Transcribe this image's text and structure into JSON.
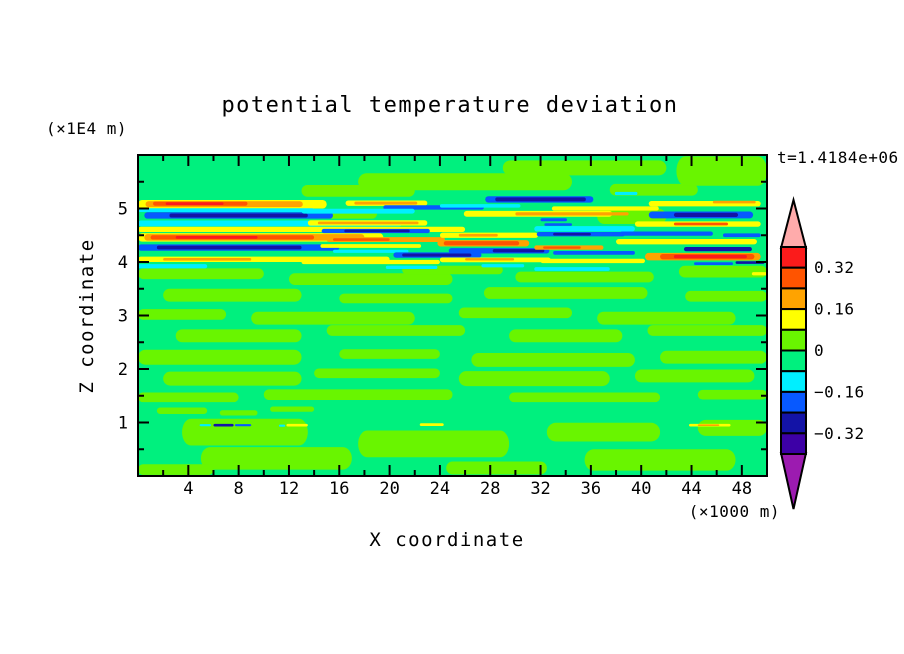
{
  "title": "potential temperature deviation",
  "time_label": "t=1.4184e+06",
  "axes": {
    "x": {
      "label": "X coordinate",
      "unit_label": "(×1000 m)",
      "range": [
        0,
        50
      ],
      "major_ticks": [
        {
          "value": 4,
          "label": "4"
        },
        {
          "value": 8,
          "label": "8"
        },
        {
          "value": 12,
          "label": "12"
        },
        {
          "value": 16,
          "label": "16"
        },
        {
          "value": 20,
          "label": "20"
        },
        {
          "value": 24,
          "label": "24"
        },
        {
          "value": 28,
          "label": "28"
        },
        {
          "value": 32,
          "label": "32"
        },
        {
          "value": 36,
          "label": "36"
        },
        {
          "value": 40,
          "label": "40"
        },
        {
          "value": 44,
          "label": "44"
        },
        {
          "value": 48,
          "label": "48"
        }
      ],
      "minor_ticks": [
        2,
        6,
        10,
        14,
        18,
        22,
        26,
        30,
        34,
        38,
        42,
        46
      ]
    },
    "z": {
      "label": "Z coordinate",
      "unit_label": "(×1E4 m)",
      "range": [
        0,
        6
      ],
      "major_ticks": [
        {
          "value": 1,
          "label": "1"
        },
        {
          "value": 2,
          "label": "2"
        },
        {
          "value": 3,
          "label": "3"
        },
        {
          "value": 4,
          "label": "4"
        },
        {
          "value": 5,
          "label": "5"
        }
      ],
      "minor_ticks": [
        0.5,
        1.5,
        2.5,
        3.5,
        4.5,
        5.5
      ]
    }
  },
  "colorbar": {
    "segments_top_to_bottom": [
      "#FB1B1B",
      "#FF5400",
      "#FFA300",
      "#FFFF00",
      "#69F500",
      "#00F07E",
      "#00EFFF",
      "#0759FF",
      "#1313A6",
      "#3D00A6"
    ],
    "arrow_top_color": "#FFABAB",
    "arrow_bottom_color": "#9C1BB0",
    "labels": [
      {
        "text": "0.32",
        "boundary_index": 1
      },
      {
        "text": "0.16",
        "boundary_index": 3
      },
      {
        "text": "0",
        "boundary_index": 5
      },
      {
        "text": "−0.16",
        "boundary_index": 7
      },
      {
        "text": "−0.32",
        "boundary_index": 9
      }
    ]
  },
  "chart_data": {
    "type": "filled_contour",
    "title": "potential temperature deviation",
    "xlabel": "X coordinate (×1000 m)",
    "ylabel": "Z coordinate (×1E4 m)",
    "x_range": [
      0,
      50
    ],
    "z_range": [
      0,
      6
    ],
    "contour_levels": [
      -0.4,
      -0.32,
      -0.24,
      -0.16,
      -0.08,
      0,
      0.08,
      0.16,
      0.24,
      0.32,
      0.4
    ],
    "palette": {
      "bands": [
        {
          "min": 0.32,
          "max": 0.4,
          "color": "#FB1B1B"
        },
        {
          "min": 0.24,
          "max": 0.32,
          "color": "#FF5400"
        },
        {
          "min": 0.16,
          "max": 0.24,
          "color": "#FFA300"
        },
        {
          "min": 0.08,
          "max": 0.16,
          "color": "#FFFF00"
        },
        {
          "min": 0,
          "max": 0.08,
          "color": "#69F500"
        },
        {
          "min": -0.08,
          "max": 0,
          "color": "#00F07E"
        },
        {
          "min": -0.16,
          "max": -0.08,
          "color": "#00EFFF"
        },
        {
          "min": -0.24,
          "max": -0.16,
          "color": "#0759FF"
        },
        {
          "min": -0.32,
          "max": -0.24,
          "color": "#1313A6"
        },
        {
          "min": -0.4,
          "max": -0.32,
          "color": "#3D00A6"
        }
      ],
      "over_color": "#FFABAB",
      "under_color": "#9C1BB0"
    },
    "background_value": -0.04,
    "patch_value": 0.04,
    "patches": [
      {
        "x": 13,
        "z": 5.33,
        "w": 9,
        "h": 0.22
      },
      {
        "x": 17.5,
        "z": 5.5,
        "w": 17,
        "h": 0.32
      },
      {
        "x": 29,
        "z": 5.76,
        "w": 13,
        "h": 0.28
      },
      {
        "x": 37.5,
        "z": 5.35,
        "w": 7,
        "h": 0.22
      },
      {
        "x": 42.8,
        "z": 5.7,
        "w": 7.2,
        "h": 0.55
      },
      {
        "x": 14,
        "z": 4.9,
        "w": 5,
        "h": 0.18
      },
      {
        "x": 36.5,
        "z": 4.85,
        "w": 5.5,
        "h": 0.28
      },
      {
        "x": 0,
        "z": 3.78,
        "w": 10,
        "h": 0.2
      },
      {
        "x": 12,
        "z": 3.68,
        "w": 13,
        "h": 0.22
      },
      {
        "x": 21,
        "z": 3.85,
        "w": 8,
        "h": 0.16
      },
      {
        "x": 30,
        "z": 3.72,
        "w": 11,
        "h": 0.2
      },
      {
        "x": 43,
        "z": 3.82,
        "w": 7,
        "h": 0.22
      },
      {
        "x": 2,
        "z": 3.38,
        "w": 11,
        "h": 0.24
      },
      {
        "x": 16,
        "z": 3.32,
        "w": 9,
        "h": 0.18
      },
      {
        "x": 27.5,
        "z": 3.42,
        "w": 13,
        "h": 0.22
      },
      {
        "x": 43.5,
        "z": 3.36,
        "w": 6.5,
        "h": 0.2
      },
      {
        "x": 0,
        "z": 3.02,
        "w": 7,
        "h": 0.2
      },
      {
        "x": 9,
        "z": 2.95,
        "w": 13,
        "h": 0.24
      },
      {
        "x": 25.5,
        "z": 3.05,
        "w": 9,
        "h": 0.2
      },
      {
        "x": 36.5,
        "z": 2.95,
        "w": 11,
        "h": 0.24
      },
      {
        "x": 3,
        "z": 2.62,
        "w": 10,
        "h": 0.24
      },
      {
        "x": 15,
        "z": 2.72,
        "w": 11,
        "h": 0.2
      },
      {
        "x": 29.5,
        "z": 2.62,
        "w": 9,
        "h": 0.24
      },
      {
        "x": 40.5,
        "z": 2.72,
        "w": 9.5,
        "h": 0.2
      },
      {
        "x": 0,
        "z": 2.22,
        "w": 13,
        "h": 0.28
      },
      {
        "x": 16,
        "z": 2.28,
        "w": 8,
        "h": 0.18
      },
      {
        "x": 26.5,
        "z": 2.17,
        "w": 13,
        "h": 0.26
      },
      {
        "x": 41.5,
        "z": 2.22,
        "w": 8.5,
        "h": 0.24
      },
      {
        "x": 2,
        "z": 1.82,
        "w": 11,
        "h": 0.26
      },
      {
        "x": 14,
        "z": 1.92,
        "w": 10,
        "h": 0.18
      },
      {
        "x": 25.5,
        "z": 1.82,
        "w": 12,
        "h": 0.28
      },
      {
        "x": 39.5,
        "z": 1.87,
        "w": 9.5,
        "h": 0.24
      },
      {
        "x": 0,
        "z": 1.47,
        "w": 8,
        "h": 0.18
      },
      {
        "x": 10,
        "z": 1.52,
        "w": 15,
        "h": 0.2
      },
      {
        "x": 29.5,
        "z": 1.47,
        "w": 12,
        "h": 0.18
      },
      {
        "x": 44.5,
        "z": 1.52,
        "w": 5.5,
        "h": 0.18
      },
      {
        "x": 1.5,
        "z": 1.22,
        "w": 4,
        "h": 0.12
      },
      {
        "x": 6.5,
        "z": 1.18,
        "w": 3,
        "h": 0.1
      },
      {
        "x": 10.5,
        "z": 1.25,
        "w": 3.5,
        "h": 0.1
      },
      {
        "x": 3.5,
        "z": 0.82,
        "w": 10,
        "h": 0.5
      },
      {
        "x": 5,
        "z": 0.33,
        "w": 12,
        "h": 0.42
      },
      {
        "x": 17.5,
        "z": 0.6,
        "w": 12,
        "h": 0.5
      },
      {
        "x": 32.5,
        "z": 0.82,
        "w": 9,
        "h": 0.35
      },
      {
        "x": 35.5,
        "z": 0.3,
        "w": 12,
        "h": 0.4
      },
      {
        "x": 44.5,
        "z": 0.9,
        "w": 5.5,
        "h": 0.3
      },
      {
        "x": 24.5,
        "z": 0.15,
        "w": 8,
        "h": 0.24
      },
      {
        "x": 0,
        "z": 0.12,
        "w": 6,
        "h": 0.2
      }
    ],
    "streaks": [
      {
        "x": 0,
        "z": 5.08,
        "w": 15,
        "h": 0.16,
        "v": 0.12
      },
      {
        "x": 0.6,
        "z": 5.08,
        "w": 12.5,
        "h": 0.11,
        "v": 0.2
      },
      {
        "x": 1.2,
        "z": 5.09,
        "w": 7.5,
        "h": 0.075,
        "v": 0.28
      },
      {
        "x": 2.2,
        "z": 5.09,
        "w": 4.6,
        "h": 0.05,
        "v": 0.36
      },
      {
        "x": 0,
        "z": 4.97,
        "w": 14,
        "h": 0.07,
        "v": -0.12
      },
      {
        "x": 0.5,
        "z": 4.87,
        "w": 15,
        "h": 0.12,
        "v": -0.2
      },
      {
        "x": 2.5,
        "z": 4.87,
        "w": 11,
        "h": 0.075,
        "v": -0.28
      },
      {
        "x": 0,
        "z": 4.72,
        "w": 21,
        "h": 0.11,
        "v": -0.12
      },
      {
        "x": 0,
        "z": 4.61,
        "w": 26,
        "h": 0.1,
        "v": 0.12
      },
      {
        "x": 0,
        "z": 4.46,
        "w": 19.5,
        "h": 0.16,
        "v": 0.12
      },
      {
        "x": 0.5,
        "z": 4.46,
        "w": 17.5,
        "h": 0.12,
        "v": 0.2
      },
      {
        "x": 1,
        "z": 4.46,
        "w": 13,
        "h": 0.08,
        "v": 0.28
      },
      {
        "x": 3,
        "z": 4.46,
        "w": 6.5,
        "h": 0.05,
        "v": 0.36
      },
      {
        "x": 0,
        "z": 4.27,
        "w": 16,
        "h": 0.12,
        "v": -0.2
      },
      {
        "x": 1.5,
        "z": 4.27,
        "w": 11.5,
        "h": 0.07,
        "v": -0.28
      },
      {
        "x": 0,
        "z": 4.05,
        "w": 20,
        "h": 0.1,
        "v": 0.12
      },
      {
        "x": 2,
        "z": 4.05,
        "w": 7,
        "h": 0.05,
        "v": 0.2
      },
      {
        "x": 0,
        "z": 3.92,
        "w": 5.5,
        "h": 0.08,
        "v": -0.12
      },
      {
        "x": 20,
        "z": 3.9,
        "w": 3.8,
        "h": 0.06,
        "v": -0.12
      },
      {
        "x": 16.5,
        "z": 5.1,
        "w": 6.5,
        "h": 0.1,
        "v": 0.12
      },
      {
        "x": 17.2,
        "z": 5.1,
        "w": 5,
        "h": 0.055,
        "v": 0.2
      },
      {
        "x": 19.5,
        "z": 5.02,
        "w": 8,
        "h": 0.08,
        "v": -0.2
      },
      {
        "x": 13,
        "z": 4.95,
        "w": 9,
        "h": 0.09,
        "v": -0.12
      },
      {
        "x": 13.5,
        "z": 4.73,
        "w": 9.5,
        "h": 0.1,
        "v": 0.12
      },
      {
        "x": 14.3,
        "z": 4.73,
        "w": 8,
        "h": 0.05,
        "v": 0.2
      },
      {
        "x": 14.6,
        "z": 4.58,
        "w": 8.6,
        "h": 0.08,
        "v": -0.2
      },
      {
        "x": 16.4,
        "z": 4.58,
        "w": 5.2,
        "h": 0.05,
        "v": -0.28
      },
      {
        "x": 15,
        "z": 4.42,
        "w": 9.4,
        "h": 0.09,
        "v": 0.2
      },
      {
        "x": 15.5,
        "z": 4.42,
        "w": 4.5,
        "h": 0.05,
        "v": 0.28
      },
      {
        "x": 14.5,
        "z": 4.3,
        "w": 8,
        "h": 0.07,
        "v": 0.12
      },
      {
        "x": 15.5,
        "z": 4.2,
        "w": 6,
        "h": 0.06,
        "v": -0.12
      },
      {
        "x": 20.3,
        "z": 4.13,
        "w": 7,
        "h": 0.1,
        "v": -0.2
      },
      {
        "x": 21,
        "z": 4.13,
        "w": 5.5,
        "h": 0.06,
        "v": -0.28
      },
      {
        "x": 13,
        "z": 4.0,
        "w": 11,
        "h": 0.08,
        "v": 0.12
      },
      {
        "x": 19.7,
        "z": 3.9,
        "w": 3.8,
        "h": 0.06,
        "v": -0.12
      },
      {
        "x": 27.6,
        "z": 5.17,
        "w": 8.6,
        "h": 0.12,
        "v": -0.2
      },
      {
        "x": 28.4,
        "z": 5.17,
        "w": 7.2,
        "h": 0.075,
        "v": -0.28
      },
      {
        "x": 24,
        "z": 5.05,
        "w": 6.4,
        "h": 0.065,
        "v": -0.12
      },
      {
        "x": 25.9,
        "z": 4.9,
        "w": 11.8,
        "h": 0.11,
        "v": 0.12
      },
      {
        "x": 30,
        "z": 4.9,
        "w": 9,
        "h": 0.06,
        "v": 0.2
      },
      {
        "x": 32,
        "z": 4.79,
        "w": 2.1,
        "h": 0.055,
        "v": -0.2
      },
      {
        "x": 24,
        "z": 4.5,
        "w": 7.8,
        "h": 0.1,
        "v": 0.12
      },
      {
        "x": 25.5,
        "z": 4.5,
        "w": 3.1,
        "h": 0.05,
        "v": 0.2
      },
      {
        "x": 23.8,
        "z": 4.35,
        "w": 7.3,
        "h": 0.12,
        "v": 0.2
      },
      {
        "x": 24.3,
        "z": 4.35,
        "w": 6,
        "h": 0.08,
        "v": 0.28
      },
      {
        "x": 24.7,
        "z": 4.21,
        "w": 8,
        "h": 0.1,
        "v": -0.2
      },
      {
        "x": 28.2,
        "z": 4.21,
        "w": 4.1,
        "h": 0.06,
        "v": -0.28
      },
      {
        "x": 24,
        "z": 4.04,
        "w": 8.8,
        "h": 0.09,
        "v": 0.12
      },
      {
        "x": 26,
        "z": 4.05,
        "w": 3.9,
        "h": 0.045,
        "v": 0.2
      },
      {
        "x": 27.3,
        "z": 3.93,
        "w": 3.4,
        "h": 0.06,
        "v": -0.12
      },
      {
        "x": 32.9,
        "z": 5.0,
        "w": 8.5,
        "h": 0.08,
        "v": 0.12
      },
      {
        "x": 32.3,
        "z": 4.7,
        "w": 2.2,
        "h": 0.05,
        "v": -0.2
      },
      {
        "x": 31.5,
        "z": 4.62,
        "w": 8,
        "h": 0.1,
        "v": -0.12
      },
      {
        "x": 31.7,
        "z": 4.52,
        "w": 7,
        "h": 0.08,
        "v": -0.2
      },
      {
        "x": 33,
        "z": 4.52,
        "w": 3,
        "h": 0.05,
        "v": -0.28
      },
      {
        "x": 31.5,
        "z": 4.27,
        "w": 5.5,
        "h": 0.08,
        "v": 0.2
      },
      {
        "x": 32.2,
        "z": 4.27,
        "w": 3,
        "h": 0.045,
        "v": 0.28
      },
      {
        "x": 33,
        "z": 4.17,
        "w": 6.5,
        "h": 0.07,
        "v": -0.2
      },
      {
        "x": 32,
        "z": 4.02,
        "w": 8.3,
        "h": 0.08,
        "v": 0.12
      },
      {
        "x": 31.5,
        "z": 3.87,
        "w": 6,
        "h": 0.07,
        "v": -0.12
      },
      {
        "x": 37.9,
        "z": 5.28,
        "w": 1.8,
        "h": 0.06,
        "v": -0.12
      },
      {
        "x": 40.6,
        "z": 5.09,
        "w": 8.9,
        "h": 0.1,
        "v": 0.12
      },
      {
        "x": 45.7,
        "z": 5.12,
        "w": 3.4,
        "h": 0.05,
        "v": 0.2
      },
      {
        "x": 40.6,
        "z": 4.88,
        "w": 8.3,
        "h": 0.13,
        "v": -0.2
      },
      {
        "x": 42.6,
        "z": 4.88,
        "w": 5.1,
        "h": 0.08,
        "v": -0.28
      },
      {
        "x": 39.5,
        "z": 4.71,
        "w": 10,
        "h": 0.1,
        "v": 0.12
      },
      {
        "x": 42.6,
        "z": 4.71,
        "w": 4.3,
        "h": 0.05,
        "v": 0.28
      },
      {
        "x": 38.3,
        "z": 4.53,
        "w": 7.4,
        "h": 0.08,
        "v": -0.2
      },
      {
        "x": 46.5,
        "z": 4.5,
        "w": 3,
        "h": 0.07,
        "v": -0.2
      },
      {
        "x": 38,
        "z": 4.38,
        "w": 11.2,
        "h": 0.1,
        "v": 0.12
      },
      {
        "x": 43.4,
        "z": 4.24,
        "w": 5.4,
        "h": 0.08,
        "v": -0.28
      },
      {
        "x": 40.3,
        "z": 4.1,
        "w": 9.2,
        "h": 0.14,
        "v": 0.2
      },
      {
        "x": 41.5,
        "z": 4.1,
        "w": 7.5,
        "h": 0.1,
        "v": 0.28
      },
      {
        "x": 42.6,
        "z": 4.1,
        "w": 5.8,
        "h": 0.06,
        "v": 0.36
      },
      {
        "x": 44.2,
        "z": 3.97,
        "w": 3.1,
        "h": 0.05,
        "v": -0.2
      },
      {
        "x": 47.5,
        "z": 3.99,
        "w": 2.3,
        "h": 0.05,
        "v": -0.28
      },
      {
        "x": 48.8,
        "z": 3.78,
        "w": 1.2,
        "h": 0.06,
        "v": 0.12
      },
      {
        "x": 4.9,
        "z": 0.95,
        "w": 0.9,
        "h": 0.04,
        "v": -0.12
      },
      {
        "x": 6,
        "z": 0.95,
        "w": 1.6,
        "h": 0.05,
        "v": -0.28
      },
      {
        "x": 7.7,
        "z": 0.95,
        "w": 1.3,
        "h": 0.04,
        "v": -0.2
      },
      {
        "x": 11.2,
        "z": 0.94,
        "w": 0.5,
        "h": 0.04,
        "v": -0.12
      },
      {
        "x": 11.8,
        "z": 0.95,
        "w": 1.7,
        "h": 0.05,
        "v": 0.12
      },
      {
        "x": 22.4,
        "z": 0.96,
        "w": 1.9,
        "h": 0.05,
        "v": 0.12
      },
      {
        "x": 43.8,
        "z": 0.95,
        "w": 3.3,
        "h": 0.05,
        "v": 0.12
      },
      {
        "x": 44.5,
        "z": 0.95,
        "w": 1.7,
        "h": 0.03,
        "v": 0.2
      }
    ]
  }
}
